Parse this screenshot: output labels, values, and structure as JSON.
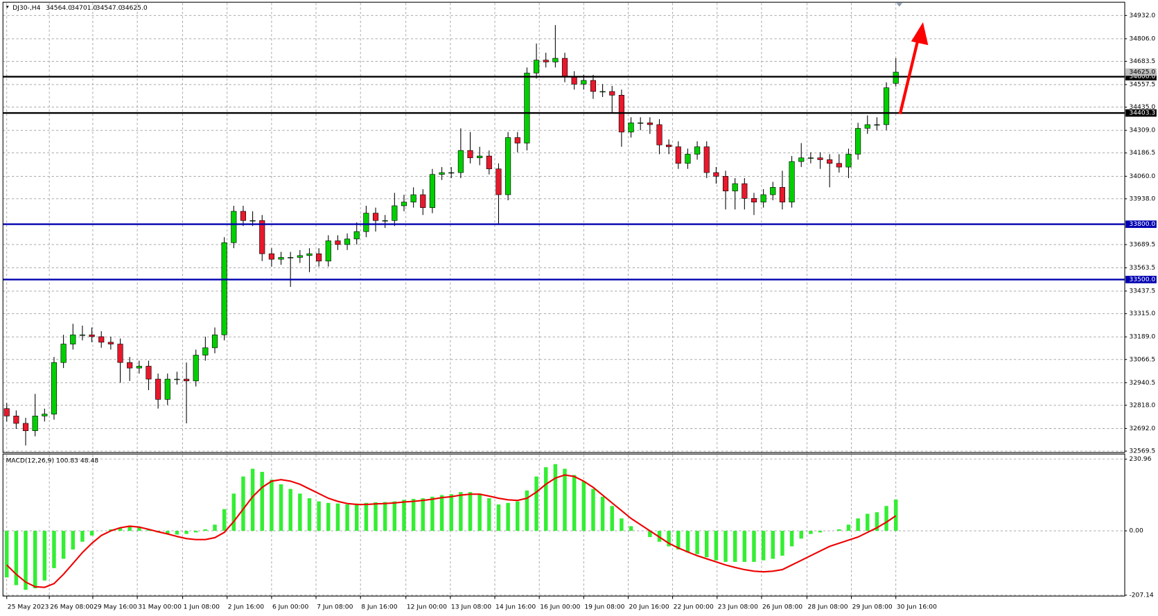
{
  "chart_data": [
    {
      "type": "candlestick",
      "title": "DJ30-,H4",
      "header_values": [
        {
          "value": 34564,
          "label": "34564.0"
        },
        {
          "value": 34701,
          "label": "34701.0"
        },
        {
          "value": 34547,
          "label": "34547.0"
        },
        {
          "value": 34625,
          "label": "34625.0"
        }
      ],
      "open": [
        32800,
        32760,
        32720,
        32680,
        32760,
        32770,
        33050,
        33150,
        33200,
        33200,
        33190,
        33160,
        33150,
        33050,
        33020,
        33030,
        32960,
        32850,
        32960,
        32960,
        32950,
        33090,
        33130,
        33200,
        33700,
        33870,
        33820,
        33820,
        33640,
        33610,
        33620,
        33620,
        33630,
        33640,
        33600,
        33710,
        33690,
        33720,
        33760,
        33860,
        33820,
        33820,
        33900,
        33920,
        33960,
        33890,
        34070,
        34080,
        34080,
        34200,
        34160,
        34170,
        34100,
        33960,
        34270,
        34240,
        34620,
        34690,
        34680,
        34700,
        34600,
        34560,
        34580,
        34520,
        34520,
        34500,
        34300,
        34350,
        34350,
        34340,
        34230,
        34220,
        34130,
        34180,
        34220,
        34080,
        34060,
        33980,
        34020,
        33940,
        33920,
        33960,
        34000,
        33920,
        34140,
        34160,
        34160,
        34150,
        34130,
        34110,
        34180,
        34320,
        34340,
        34340,
        34564
      ],
      "high": [
        32830,
        32790,
        32750,
        32880,
        32800,
        33080,
        33200,
        33260,
        33250,
        33240,
        33220,
        33190,
        33180,
        33080,
        33060,
        33060,
        32990,
        32990,
        33000,
        33050,
        33120,
        33190,
        33240,
        33730,
        33900,
        33900,
        33870,
        33850,
        33670,
        33650,
        33650,
        33660,
        33670,
        33670,
        33740,
        33740,
        33750,
        33810,
        33900,
        33890,
        33850,
        33970,
        33960,
        34000,
        33990,
        34100,
        34110,
        34110,
        34320,
        34300,
        34220,
        34200,
        34130,
        34300,
        34300,
        34650,
        34780,
        34730,
        34880,
        34730,
        34630,
        34610,
        34610,
        34560,
        34550,
        34530,
        34380,
        34380,
        34380,
        34370,
        34260,
        34250,
        34210,
        34250,
        34250,
        34110,
        34090,
        34050,
        34050,
        33970,
        33990,
        34030,
        34090,
        34170,
        34240,
        34190,
        34190,
        34180,
        34180,
        34210,
        34350,
        34390,
        34380,
        34570,
        34701
      ],
      "low": [
        32730,
        32690,
        32600,
        32650,
        32730,
        32740,
        33020,
        33120,
        33170,
        33160,
        33130,
        33120,
        32940,
        32950,
        32990,
        32900,
        32800,
        32820,
        32930,
        32720,
        32920,
        33060,
        33100,
        33170,
        33670,
        33790,
        33790,
        33600,
        33570,
        33580,
        33460,
        33590,
        33540,
        33570,
        33570,
        33660,
        33660,
        33690,
        33730,
        33760,
        33780,
        33790,
        33870,
        33890,
        33850,
        33860,
        34040,
        34050,
        34050,
        34130,
        34120,
        34070,
        33800,
        33930,
        34190,
        34200,
        34590,
        34650,
        34650,
        34570,
        34530,
        34530,
        34480,
        34490,
        34400,
        34220,
        34270,
        34310,
        34290,
        34180,
        34180,
        34100,
        34100,
        34150,
        34050,
        34020,
        33880,
        33880,
        33880,
        33850,
        33890,
        33930,
        33880,
        33890,
        34110,
        34130,
        34100,
        34000,
        34080,
        34050,
        34150,
        34290,
        34310,
        34310,
        34547
      ],
      "close": [
        32760,
        32720,
        32680,
        32760,
        32770,
        33050,
        33150,
        33200,
        33200,
        33190,
        33160,
        33150,
        33050,
        33020,
        33030,
        32960,
        32850,
        32960,
        32960,
        32950,
        33090,
        33130,
        33200,
        33700,
        33870,
        33820,
        33820,
        33640,
        33610,
        33620,
        33620,
        33630,
        33640,
        33600,
        33710,
        33690,
        33720,
        33760,
        33860,
        33820,
        33820,
        33900,
        33920,
        33960,
        33890,
        34070,
        34080,
        34080,
        34200,
        34160,
        34170,
        34100,
        33960,
        34270,
        34240,
        34620,
        34690,
        34680,
        34700,
        34600,
        34560,
        34580,
        34520,
        34520,
        34500,
        34300,
        34350,
        34350,
        34340,
        34230,
        34220,
        34130,
        34180,
        34220,
        34080,
        34060,
        33980,
        34020,
        33940,
        33920,
        33960,
        34000,
        33920,
        34140,
        34160,
        34160,
        34150,
        34130,
        34110,
        34180,
        34320,
        34340,
        34340,
        34540,
        34625
      ],
      "up_color": "#00d000",
      "down_color": "#e8192c",
      "xlim": [
        -0.4,
        118.2
      ],
      "ylim": [
        32561.5,
        35000
      ],
      "yticks": [
        {
          "value": 34932,
          "label": "34932.0"
        },
        {
          "value": 34806,
          "label": "34806.0"
        },
        34683.5,
        34557.5,
        {
          "value": 34435,
          "label": "34435.0"
        },
        {
          "value": 34309,
          "label": "34309.0"
        },
        34186.5,
        {
          "value": 34060,
          "label": "34060.0"
        },
        {
          "value": 33938,
          "label": "33938.0"
        },
        33689.5,
        33563.5,
        33437.5,
        {
          "value": 33315,
          "label": "33315.0"
        },
        {
          "value": 33189,
          "label": "33189.0"
        },
        33066.5,
        32940.5,
        {
          "value": 32818,
          "label": "32818.0"
        },
        {
          "value": 32692,
          "label": "32692.0"
        },
        32569.5
      ],
      "levels": [
        {
          "value": 34600,
          "label": "34600.0",
          "color": "#000000"
        },
        {
          "value": 34403.3,
          "label": "34403.3",
          "color": "#000000"
        },
        {
          "value": 33800,
          "label": "33800.0",
          "color": "#0000b0"
        },
        {
          "value": 33500,
          "label": "33500.0",
          "color": "#0000b0"
        }
      ],
      "current_price": {
        "value": 34625,
        "label": "34625.0"
      },
      "grid": true
    },
    {
      "type": "macd",
      "title": "MACD(12,26,9) 100.83 48.48",
      "histogram": {
        "color": "#33ee33",
        "values": [
          -150,
          -175,
          -190,
          -185,
          -160,
          -120,
          -90,
          -60,
          -35,
          -15,
          0,
          5,
          10,
          15,
          12,
          5,
          -5,
          -10,
          -12,
          -10,
          -5,
          5,
          20,
          70,
          120,
          175,
          200,
          190,
          165,
          150,
          135,
          120,
          105,
          95,
          90,
          88,
          85,
          88,
          90,
          92,
          93,
          95,
          100,
          103,
          105,
          110,
          115,
          118,
          125,
          125,
          120,
          105,
          85,
          90,
          95,
          130,
          175,
          205,
          215,
          200,
          180,
          160,
          135,
          110,
          80,
          40,
          15,
          0,
          -20,
          -35,
          -50,
          -60,
          -70,
          -75,
          -85,
          -95,
          -100,
          -100,
          -100,
          -100,
          -95,
          -90,
          -80,
          -50,
          -25,
          -10,
          -5,
          0,
          5,
          20,
          40,
          55,
          60,
          80,
          100.83
        ]
      },
      "signal": {
        "color": "#ee0000",
        "values": [
          -110,
          -140,
          -165,
          -180,
          -182,
          -170,
          -140,
          -105,
          -70,
          -40,
          -15,
          0,
          10,
          15,
          12,
          5,
          -3,
          -10,
          -18,
          -25,
          -28,
          -28,
          -22,
          -5,
          30,
          70,
          110,
          140,
          160,
          165,
          160,
          150,
          135,
          120,
          105,
          95,
          88,
          85,
          85,
          87,
          88,
          90,
          93,
          95,
          98,
          102,
          107,
          110,
          115,
          118,
          118,
          112,
          105,
          100,
          98,
          105,
          125,
          150,
          170,
          180,
          175,
          160,
          140,
          115,
          90,
          65,
          40,
          20,
          0,
          -20,
          -40,
          -55,
          -68,
          -80,
          -90,
          -100,
          -110,
          -118,
          -125,
          -130,
          -132,
          -130,
          -125,
          -110,
          -95,
          -80,
          -65,
          -50,
          -40,
          -30,
          -20,
          -5,
          10,
          28,
          48.48
        ]
      },
      "xlim": [
        -0.4,
        118.2
      ],
      "ylim": [
        -210,
        245
      ],
      "yticks": [
        230.96,
        {
          "value": 0,
          "label": "0.00"
        },
        -207.14
      ],
      "xticks": [
        {
          "value": 0,
          "label": "25 May 2023"
        },
        {
          "value": 4.5,
          "label": "26 May 08:00"
        },
        {
          "value": 9.1,
          "label": "29 May 16:00"
        },
        {
          "value": 13.8,
          "label": "31 May 00:00"
        },
        {
          "value": 18.6,
          "label": "1 Jun 08:00"
        },
        {
          "value": 23.3,
          "label": "2 Jun 16:00"
        },
        {
          "value": 28,
          "label": "6 Jun 00:00"
        },
        {
          "value": 32.7,
          "label": "7 Jun 08:00"
        },
        {
          "value": 37.4,
          "label": "8 Jun 16:00"
        },
        {
          "value": 42.2,
          "label": "12 Jun 00:00"
        },
        {
          "value": 46.9,
          "label": "13 Jun 08:00"
        },
        {
          "value": 51.6,
          "label": "14 Jun 16:00"
        },
        {
          "value": 56.3,
          "label": "16 Jun 00:00"
        },
        {
          "value": 61,
          "label": "19 Jun 08:00"
        },
        {
          "value": 65.7,
          "label": "20 Jun 16:00"
        },
        {
          "value": 70.4,
          "label": "22 Jun 00:00"
        },
        {
          "value": 75.1,
          "label": "23 Jun 08:00"
        },
        {
          "value": 79.8,
          "label": "26 Jun 08:00"
        },
        {
          "value": 84.6,
          "label": "28 Jun 08:00"
        },
        {
          "value": 89.3,
          "label": "29 Jun 08:00"
        },
        {
          "value": 94,
          "label": "30 Jun 16:00"
        }
      ],
      "grid": true
    }
  ]
}
